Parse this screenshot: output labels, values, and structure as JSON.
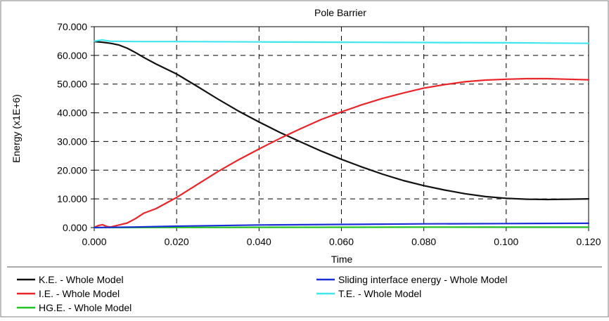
{
  "chart_data": {
    "type": "line",
    "title": "Pole Barrier",
    "xlabel": "Time",
    "ylabel": "Energy (x1E+6)",
    "xlim": [
      0,
      0.12
    ],
    "ylim": [
      0,
      70
    ],
    "xticks": [
      0,
      0.02,
      0.04,
      0.06,
      0.08,
      0.1,
      0.12
    ],
    "yticks": [
      0,
      10,
      20,
      30,
      40,
      50,
      60,
      70
    ],
    "xtick_labels": [
      "0.000",
      "0.020",
      "0.040",
      "0.060",
      "0.080",
      "0.100",
      "0.120"
    ],
    "ytick_labels": [
      "0.000",
      "10.000",
      "20.000",
      "30.000",
      "40.000",
      "50.000",
      "60.000",
      "70.000"
    ],
    "grid": true,
    "legend_position": "bottom",
    "series": [
      {
        "name": "K.E. - Whole Model",
        "color": "#111111",
        "x": [
          0,
          0.002,
          0.004,
          0.006,
          0.008,
          0.01,
          0.012,
          0.015,
          0.02,
          0.025,
          0.03,
          0.035,
          0.04,
          0.045,
          0.05,
          0.055,
          0.06,
          0.065,
          0.07,
          0.075,
          0.08,
          0.085,
          0.09,
          0.095,
          0.1,
          0.105,
          0.11,
          0.115,
          0.12
        ],
        "y": [
          64.8,
          64.6,
          64.2,
          63.6,
          62.5,
          61,
          59.3,
          57,
          53.5,
          49.2,
          44.8,
          40.6,
          36.8,
          33.2,
          29.9,
          26.7,
          23.8,
          21.1,
          18.6,
          16.4,
          14.6,
          13.1,
          11.8,
          10.8,
          10.2,
          9.9,
          9.8,
          9.9,
          10.0
        ]
      },
      {
        "name": "I.E. - Whole Model",
        "color": "#e8262a",
        "x": [
          0,
          0.001,
          0.002,
          0.003,
          0.004,
          0.006,
          0.008,
          0.01,
          0.012,
          0.015,
          0.02,
          0.025,
          0.03,
          0.035,
          0.04,
          0.045,
          0.05,
          0.055,
          0.06,
          0.065,
          0.07,
          0.075,
          0.08,
          0.085,
          0.09,
          0.095,
          0.1,
          0.105,
          0.11,
          0.115,
          0.12
        ],
        "y": [
          0.1,
          0.7,
          1.0,
          0.4,
          0.2,
          0.9,
          1.6,
          3.1,
          5.0,
          6.6,
          10.5,
          15.0,
          19.5,
          23.6,
          27.4,
          31.0,
          34.4,
          37.6,
          40.3,
          42.8,
          45.0,
          46.9,
          48.6,
          49.8,
          50.8,
          51.4,
          51.7,
          51.9,
          51.9,
          51.7,
          51.5
        ]
      },
      {
        "name": "HG.E. - Whole Model",
        "color": "#22c322",
        "x": [
          0,
          0.02,
          0.04,
          0.06,
          0.08,
          0.1,
          0.12
        ],
        "y": [
          0.0,
          0.05,
          0.1,
          0.12,
          0.14,
          0.16,
          0.18
        ]
      },
      {
        "name": "Sliding interface energy - Whole Model",
        "color": "#1a2fd6",
        "x": [
          0,
          0.01,
          0.02,
          0.04,
          0.06,
          0.08,
          0.1,
          0.12
        ],
        "y": [
          0.0,
          0.2,
          0.5,
          0.9,
          1.1,
          1.3,
          1.4,
          1.5
        ]
      },
      {
        "name": "T.E. - Whole Model",
        "color": "#3fe6ee",
        "x": [
          0,
          0.001,
          0.002,
          0.003,
          0.004,
          0.006,
          0.01,
          0.02,
          0.04,
          0.06,
          0.08,
          0.1,
          0.12
        ],
        "y": [
          64.9,
          65.2,
          65.4,
          65.1,
          64.9,
          64.9,
          64.8,
          64.8,
          64.7,
          64.6,
          64.5,
          64.4,
          64.2
        ]
      }
    ]
  }
}
